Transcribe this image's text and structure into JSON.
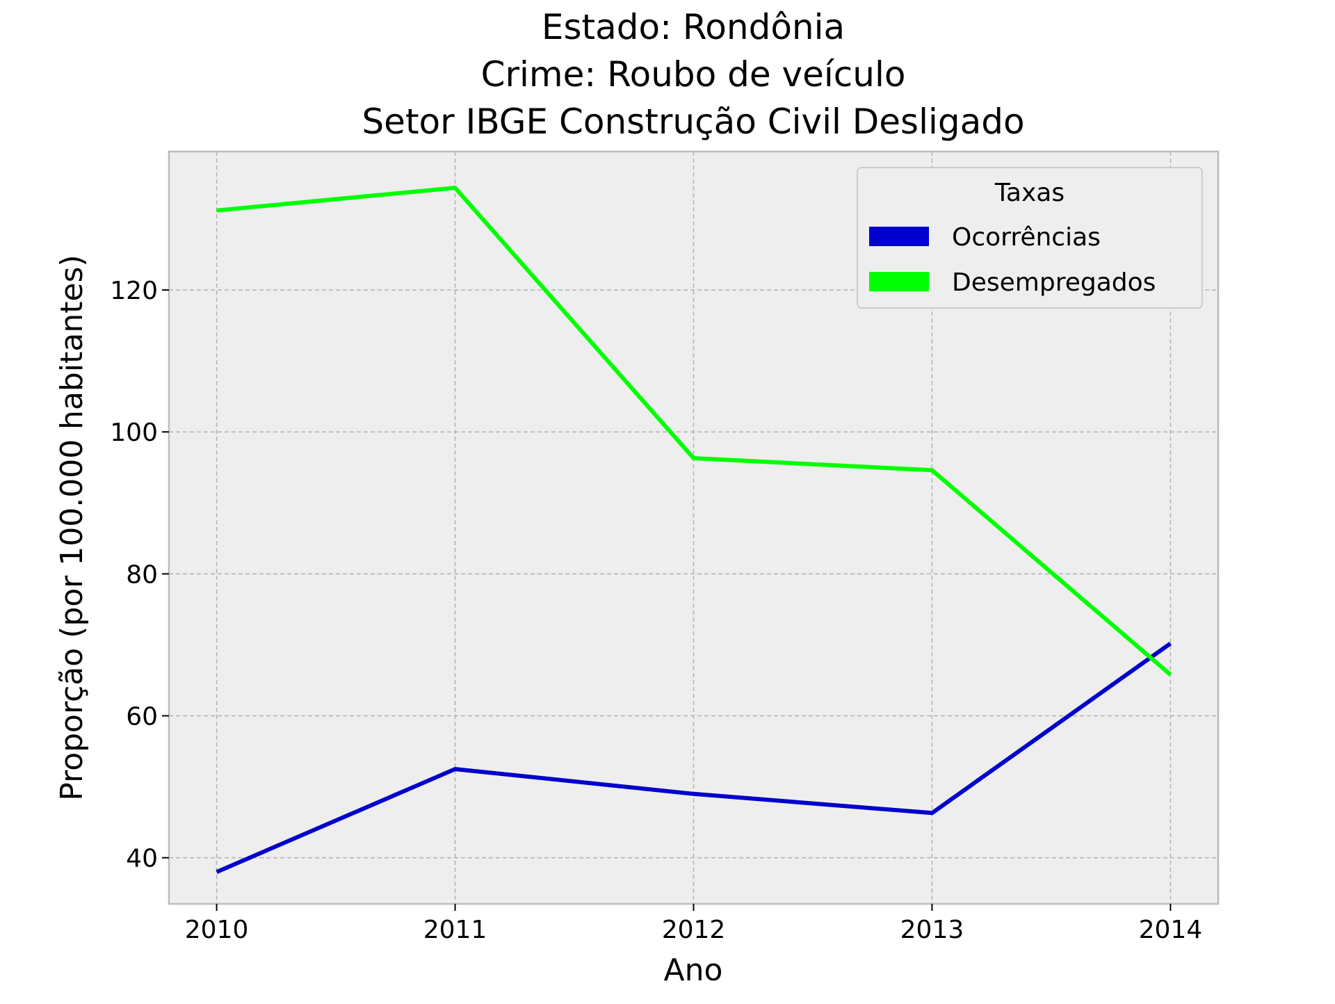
{
  "chart_data": {
    "type": "line",
    "title_lines": [
      "Estado: Rondônia",
      "Crime: Roubo de veículo",
      "Setor IBGE  Construção Civil   Desligado"
    ],
    "xlabel": "Ano",
    "ylabel": "Proporção (por 100.000 habitantes)",
    "x": [
      2010,
      2011,
      2012,
      2013,
      2014
    ],
    "x_tick_labels": [
      "2010",
      "2011",
      "2012",
      "2013",
      "2014"
    ],
    "y_ticks": [
      40,
      60,
      80,
      100,
      120
    ],
    "y_tick_labels": [
      "40",
      "60",
      "80",
      "100",
      "120"
    ],
    "xlim": [
      2009.8,
      2014.2
    ],
    "ylim": [
      33.5,
      139.5
    ],
    "grid": true,
    "legend": {
      "title": "Taxas",
      "placement": "top-right"
    },
    "series": [
      {
        "name": "Ocorrências",
        "color": "#0000cc",
        "values": [
          38.0,
          52.5,
          49.0,
          46.3,
          70.2
        ]
      },
      {
        "name": "Desempregados",
        "color": "#00ff00",
        "values": [
          131.2,
          134.4,
          96.3,
          94.6,
          65.8
        ]
      }
    ],
    "colors": {
      "plot_background": "#eeeeee",
      "grid": "#b0b0b0",
      "frame": "#bcbcbc"
    }
  }
}
